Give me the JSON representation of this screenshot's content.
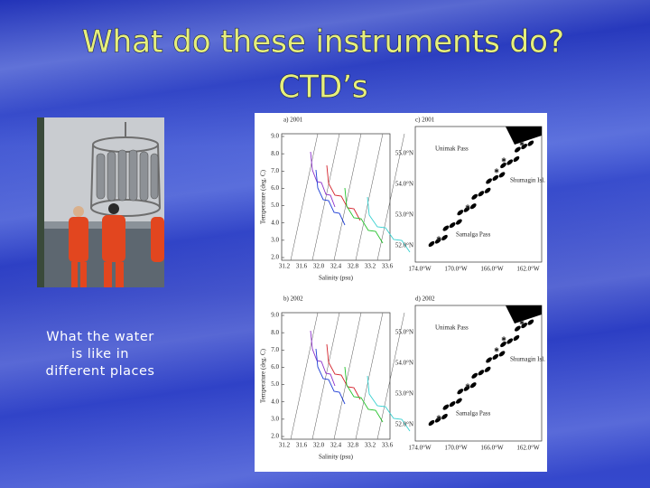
{
  "slide": {
    "title": [
      "What do these instruments do?",
      "CTD’s"
    ],
    "caption": [
      "What the water",
      "is like in",
      "different places"
    ]
  },
  "figure": {
    "panels": [
      {
        "ts_label": "a) 2001",
        "map_label": "c) 2001",
        "places": [
          "Unimak Pass",
          "Shumagin Isl.",
          "Samalga Pass"
        ]
      },
      {
        "ts_label": "b) 2002",
        "map_label": "d) 2002",
        "places": [
          "Unimak Pass",
          "Shumagin Isl.",
          "Samalga Pass"
        ]
      }
    ],
    "y_axis_label": "Temperature (deg. C)",
    "x_axis_label": "Salinity (psu)",
    "temperature_ticks": [
      "9.0",
      "8.0",
      "7.0",
      "6.0",
      "5.0",
      "4.0",
      "3.0",
      "2.0"
    ],
    "salinity_ticks": [
      "31.2",
      "31.6",
      "32.0",
      "32.4",
      "32.8",
      "33.2",
      "33.6"
    ],
    "latitude_ticks": [
      "55.0°N",
      "54.0°N",
      "53.0°N",
      "52.0°N"
    ],
    "longitude_ticks": [
      "174.0°W",
      "170.0°W",
      "166.0°W",
      "162.0°W"
    ]
  }
}
